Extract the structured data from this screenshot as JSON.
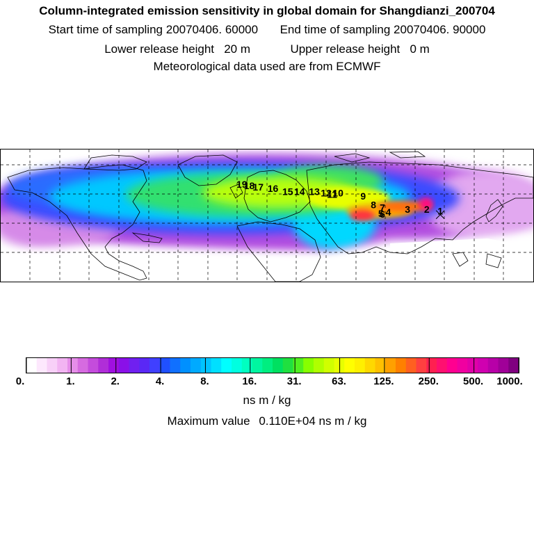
{
  "header": {
    "title": "Column-integrated emission sensitivity in global domain for Shangdianzi_200704",
    "start_label": "Start time of sampling",
    "start_value": "20070406. 60000",
    "end_label": "End time of sampling",
    "end_value": "20070406. 90000",
    "lower_label": "Lower release height",
    "lower_value": "20 m",
    "upper_label": "Upper release height",
    "upper_value": "0 m",
    "met_line": "Meteorological data used are from ECMWF"
  },
  "colorbar": {
    "unit": "ns m / kg",
    "labels": [
      "0.",
      "1.",
      "2.",
      "4.",
      "8.",
      "16.",
      "31.",
      "63.",
      "125.",
      "250.",
      "500.",
      "1000."
    ],
    "colors": [
      "#ffffff",
      "#fde8fd",
      "#f8d0f8",
      "#f2b4f2",
      "#e68ee9",
      "#d66be0",
      "#c44cdc",
      "#b02ed8",
      "#a010e0",
      "#8a10e8",
      "#7020f0",
      "#5a28f5",
      "#4040ff",
      "#2050ff",
      "#1070ff",
      "#0090ff",
      "#00aaff",
      "#00c4ff",
      "#00e0ff",
      "#00ffff",
      "#00ffe0",
      "#00ffc0",
      "#00f5a0",
      "#00ee80",
      "#00e060",
      "#20e040",
      "#50f020",
      "#88ff00",
      "#b0ff00",
      "#d0ff00",
      "#e8ff00",
      "#ffff00",
      "#fff000",
      "#ffd800",
      "#ffc000",
      "#ffa000",
      "#ff8000",
      "#ff6020",
      "#ff4040",
      "#ff2050",
      "#ff1070",
      "#ff0090",
      "#f000a0",
      "#e000a8",
      "#d000b0",
      "#b800a8",
      "#a00098",
      "#800080"
    ]
  },
  "max_label": "Maximum value",
  "max_value": "0.110E+04 ns m / kg",
  "trajectory_labels": [
    "1",
    "2",
    "3",
    "4",
    "5",
    "6",
    "7",
    "8",
    "9",
    "10",
    "11",
    "12",
    "13",
    "14",
    "15",
    "16",
    "17",
    "18",
    "19"
  ],
  "trajectory_points": [
    {
      "label": "1",
      "lon": 117.1,
      "lat": 40.6
    },
    {
      "label": "2",
      "lon": 108,
      "lat": 42
    },
    {
      "label": "3",
      "lon": 95,
      "lat": 42
    },
    {
      "label": "4",
      "lon": 82,
      "lat": 40
    },
    {
      "label": "5",
      "lon": 77,
      "lat": 39
    },
    {
      "label": "6",
      "lon": 78,
      "lat": 38.5
    },
    {
      "label": "7",
      "lon": 78,
      "lat": 43
    },
    {
      "label": "8",
      "lon": 72,
      "lat": 45
    },
    {
      "label": "9",
      "lon": 65,
      "lat": 51
    },
    {
      "label": "10",
      "lon": 48,
      "lat": 53
    },
    {
      "label": "11",
      "lon": 44,
      "lat": 52
    },
    {
      "label": "12",
      "lon": 40,
      "lat": 53
    },
    {
      "label": "13",
      "lon": 32,
      "lat": 54
    },
    {
      "label": "14",
      "lon": 22,
      "lat": 54
    },
    {
      "label": "15",
      "lon": 14,
      "lat": 54
    },
    {
      "label": "16",
      "lon": 4,
      "lat": 56
    },
    {
      "label": "17",
      "lon": -6,
      "lat": 57
    },
    {
      "label": "18",
      "lon": -12,
      "lat": 58
    },
    {
      "label": "19",
      "lon": -17,
      "lat": 59
    }
  ]
}
